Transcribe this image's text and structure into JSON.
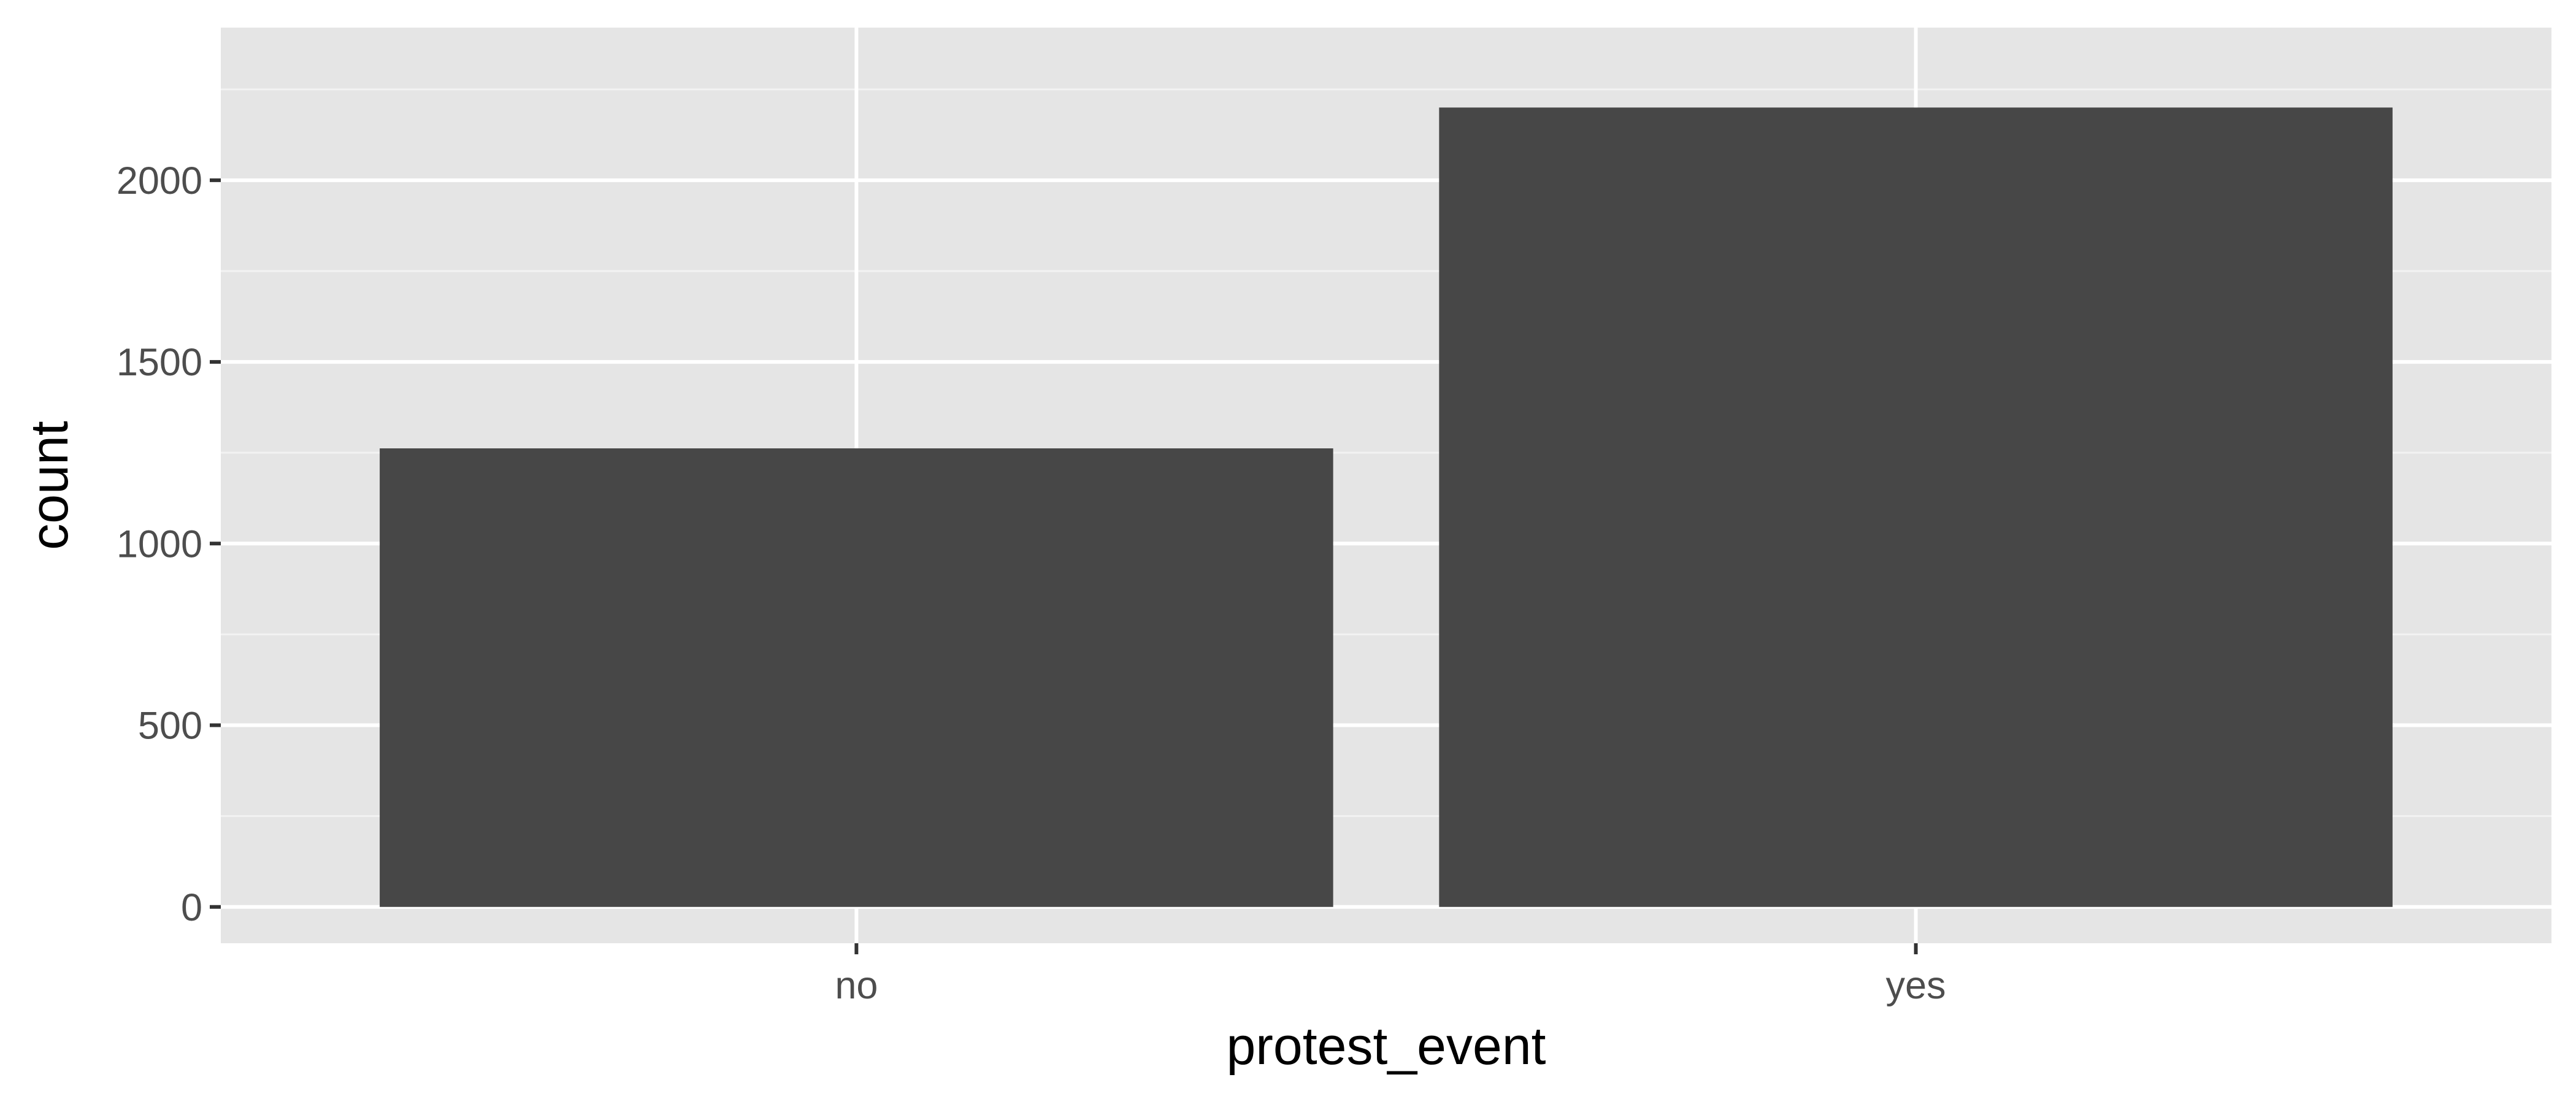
{
  "colors": {
    "panel_background": "#e5e5e5",
    "grid_major": "#ffffff",
    "grid_minor": "#f2f2f2",
    "bar_fill": "#474747",
    "tick_label": "#4d4d4d",
    "tick_mark": "#333333",
    "axis_title": "#000000"
  },
  "chart_data": {
    "type": "bar",
    "categories": [
      "no",
      "yes"
    ],
    "values": [
      1262,
      2200
    ],
    "xlabel": "protest_event",
    "ylabel": "count",
    "ylim": [
      -100,
      2420
    ],
    "yticks": [
      0,
      500,
      1000,
      1500,
      2000
    ],
    "ytick_labels": [
      "0",
      "500",
      "1000",
      "1500",
      "2000"
    ],
    "grid": true,
    "legend": "none"
  }
}
